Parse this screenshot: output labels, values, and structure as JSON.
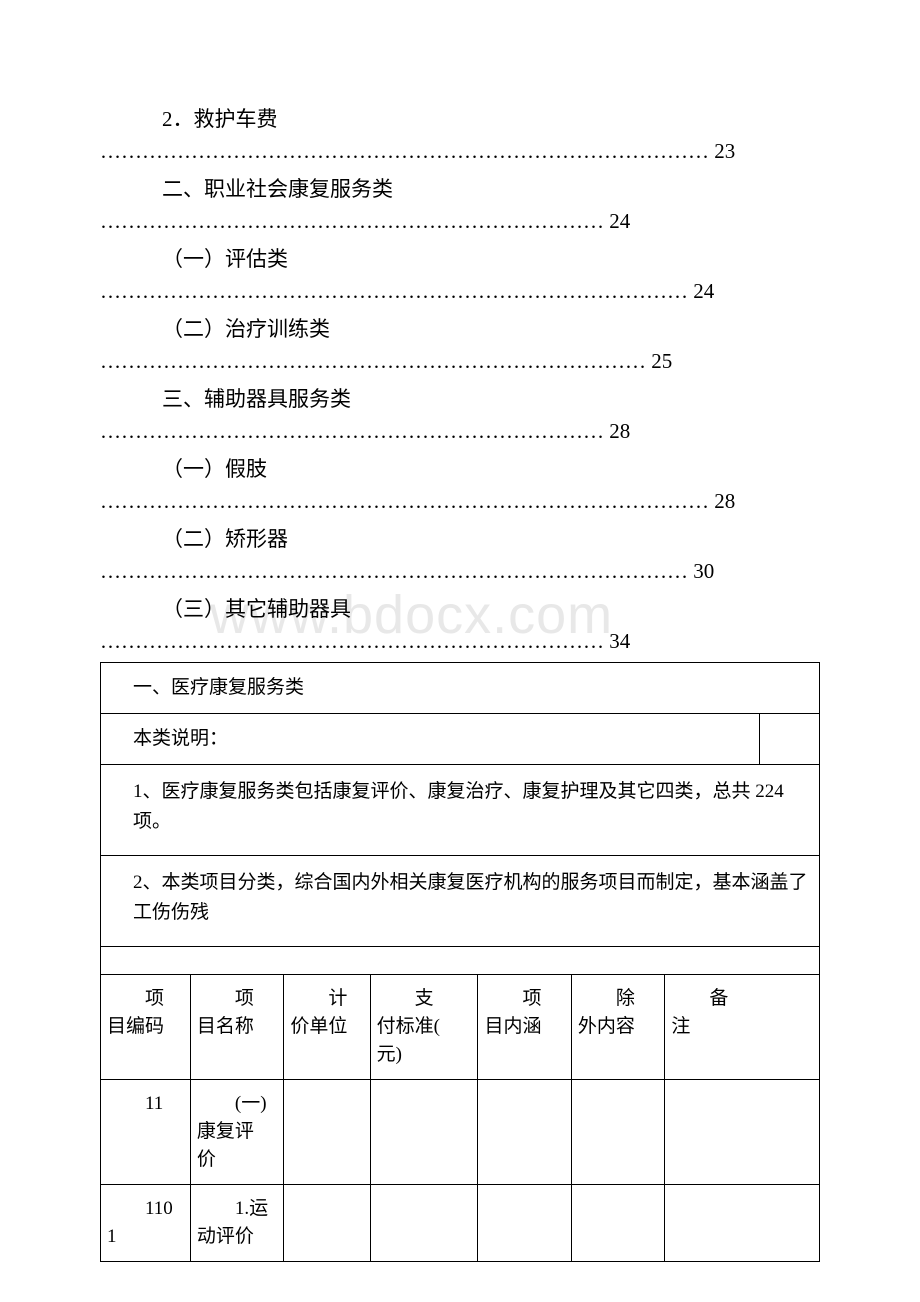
{
  "toc": [
    {
      "title": "2．救护车费",
      "page": "23",
      "dots": "…………………………………………………………………………… "
    },
    {
      "title": "二、职业社会康复服务类",
      "page": "24",
      "dots": "……………………………………………………………… "
    },
    {
      "title": "（一）评估类",
      "page": "24",
      "dots": "………………………………………………………………………… "
    },
    {
      "title": "（二）治疗训练类",
      "page": "25",
      "dots": "…………………………………………………………………… "
    },
    {
      "title": "三、辅助器具服务类",
      "page": "28",
      "dots": "……………………………………………………………… "
    },
    {
      "title": "（一）假肢",
      "page": "28",
      "dots": "…………………………………………………………………………… "
    },
    {
      "title": "（二）矫形器",
      "page": "30",
      "dots": "………………………………………………………………………… "
    },
    {
      "title": "（三）其它辅助器具",
      "page": "34",
      "dots": "……………………………………………………………… "
    }
  ],
  "section": {
    "title": "一、医疗康复服务类",
    "subtitle": "本类说明：",
    "note1": "1、医疗康复服务类包括康复评价、康复治疗、康复护理及其它四类，总共 224 项。",
    "note2": "2、本类项目分类，综合国内外相关康复医疗机构的服务项目而制定，基本涵盖了工伤伤残"
  },
  "table": {
    "headers": {
      "c1a": "　　项",
      "c1b": "目编码",
      "c2a": "　　项",
      "c2b": "目名称",
      "c3a": "　　计",
      "c3b": "价单位",
      "c4a": "　　支",
      "c4b": "付标准(",
      "c4c": "元)",
      "c5a": "　　项",
      "c5b": "目内涵",
      "c6a": "　　除",
      "c6b": "外内容",
      "c7a": "　　备",
      "c7b": "注"
    },
    "rows": [
      {
        "c1": "　　11",
        "c2a": "　　(一)",
        "c2b": "康复评",
        "c2c": "价",
        "c3": "",
        "c4": "",
        "c5": "",
        "c6": "",
        "c7": ""
      },
      {
        "c1a": "　　110",
        "c1b": "1",
        "c2a": "　　1.运",
        "c2b": "动评价",
        "c3": "",
        "c4": "",
        "c5": "",
        "c6": "",
        "c7": ""
      }
    ]
  },
  "watermark": "www.bdocx.com",
  "colors": {
    "text": "#000000",
    "background": "#ffffff",
    "border": "#000000",
    "watermark": "#e8e8e8"
  }
}
